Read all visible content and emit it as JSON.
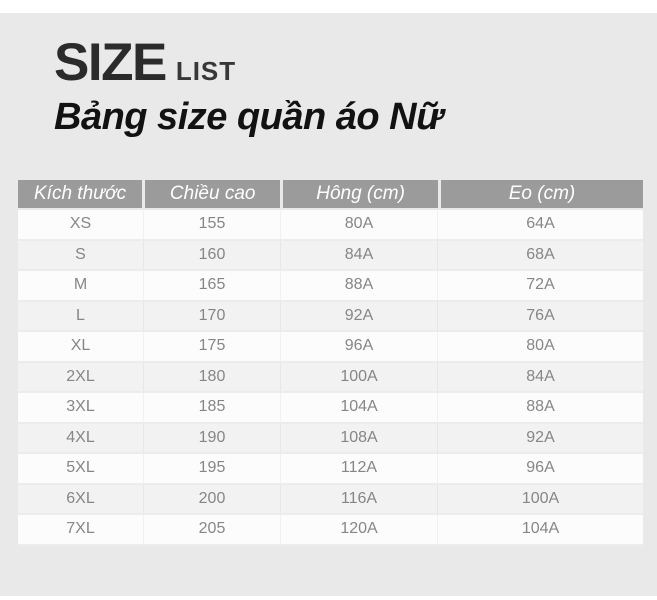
{
  "header": {
    "title_main": "SIZE",
    "title_tag": "LIST",
    "subtitle": "Bảng size quần áo Nữ"
  },
  "colors": {
    "panel_bg": "#e9e9e9",
    "table_header_bg": "#9b9b9b",
    "table_header_text": "#ffffff",
    "row_odd_bg": "#fcfcfc",
    "row_even_bg": "#f2f2f2",
    "cell_text": "#868686",
    "title_text": "#2b2b2b",
    "subtitle_text": "#121212"
  },
  "chart_data": {
    "type": "table",
    "title": "SIZE LIST",
    "subtitle": "Bảng size quần áo Nữ",
    "columns": [
      "Kích thước",
      "Chiều cao",
      "Hông (cm)",
      "Eo (cm)"
    ],
    "rows": [
      [
        "XS",
        "155",
        "80A",
        "64A"
      ],
      [
        "S",
        "160",
        "84A",
        "68A"
      ],
      [
        "M",
        "165",
        "88A",
        "72A"
      ],
      [
        "L",
        "170",
        "92A",
        "76A"
      ],
      [
        "XL",
        "175",
        "96A",
        "80A"
      ],
      [
        "2XL",
        "180",
        "100A",
        "84A"
      ],
      [
        "3XL",
        "185",
        "104A",
        "88A"
      ],
      [
        "4XL",
        "190",
        "108A",
        "92A"
      ],
      [
        "5XL",
        "195",
        "112A",
        "96A"
      ],
      [
        "6XL",
        "200",
        "116A",
        "100A"
      ],
      [
        "7XL",
        "205",
        "120A",
        "104A"
      ]
    ]
  }
}
